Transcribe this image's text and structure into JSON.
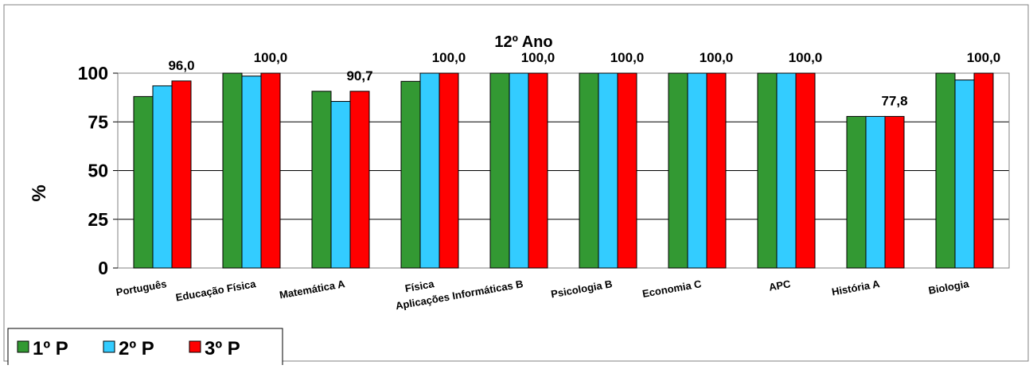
{
  "chart_data": {
    "type": "bar",
    "title": "12º Ano",
    "ylabel": "%",
    "xlabel": "",
    "ylim": [
      0,
      100
    ],
    "yticks": [
      0,
      25,
      50,
      75,
      100
    ],
    "grid": true,
    "legend_position": "bottom-left",
    "categories": [
      "Português",
      "Educação Física",
      "Matemática A",
      "Física",
      "Aplicações Informáticas B",
      "Psicologia B",
      "Economia C",
      "APC",
      "História A",
      "Biologia"
    ],
    "series": [
      {
        "name": "1º P",
        "color": "#339933",
        "values": [
          88.0,
          100.0,
          90.7,
          95.8,
          100.0,
          100.0,
          100.0,
          100.0,
          77.8,
          100.0
        ]
      },
      {
        "name": "2º P",
        "color": "#33ccff",
        "values": [
          93.5,
          98.5,
          85.5,
          100.0,
          100.0,
          100.0,
          100.0,
          100.0,
          77.8,
          96.5
        ]
      },
      {
        "name": "3º P",
        "color": "#ff0000",
        "values": [
          96.0,
          100.0,
          90.7,
          100.0,
          100.0,
          100.0,
          100.0,
          100.0,
          77.8,
          100.0
        ]
      }
    ],
    "data_labels": [
      "96,0",
      "100,0",
      "90,7",
      "100,0",
      "100,0",
      "100,0",
      "100,0",
      "100,0",
      "77,8",
      "100,0"
    ]
  }
}
